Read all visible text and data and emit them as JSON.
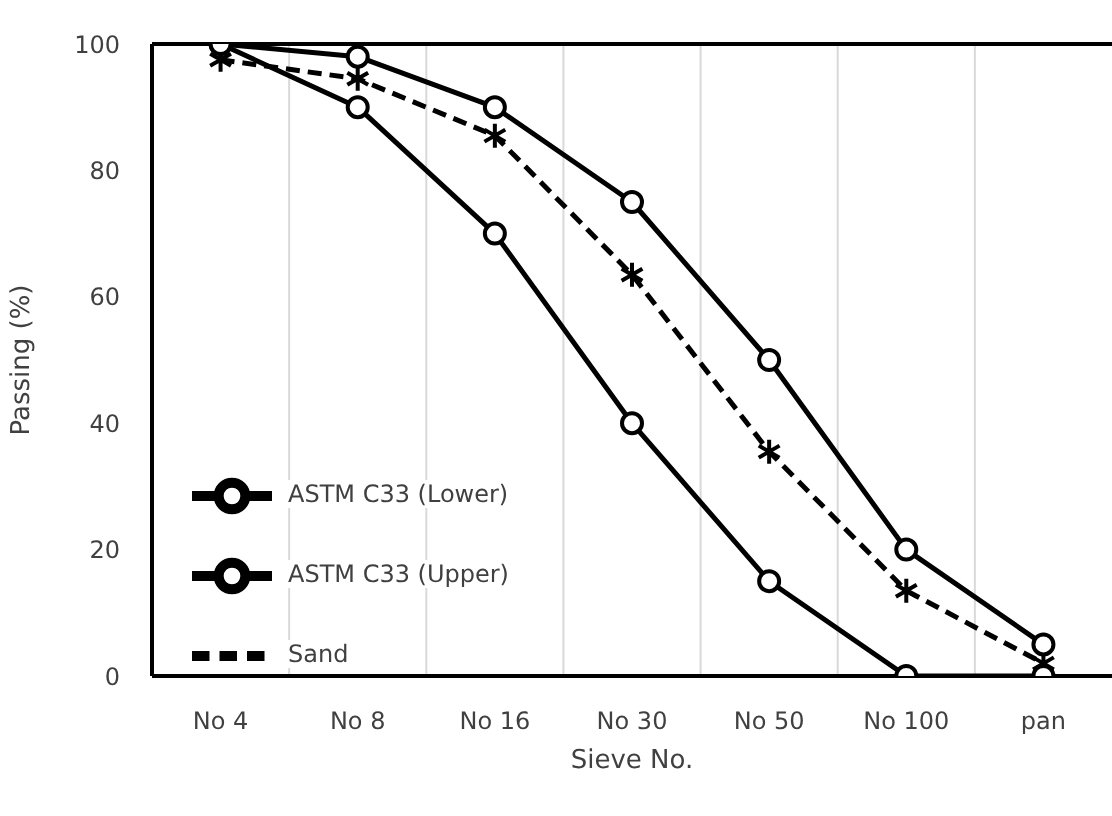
{
  "chart_data": {
    "type": "line",
    "xlabel": "Sieve No.",
    "ylabel": "Passing (%)",
    "categories": [
      "No 4",
      "No 8",
      "No 16",
      "No 30",
      "No 50",
      "No 100",
      "pan"
    ],
    "series": [
      {
        "name": "Sand",
        "color": "#000000",
        "line_style": "dashed",
        "marker": "cross",
        "values": [
          97.5,
          94.5,
          85.5,
          63.5,
          35.5,
          13.5,
          2
        ]
      },
      {
        "name": "ASTM C33 (Lower)",
        "color": "#000000",
        "line_style": "solid",
        "marker": "circle",
        "values": [
          100,
          90,
          70,
          40,
          15,
          0,
          0
        ]
      },
      {
        "name": "ASTM C33 (Upper)",
        "color": "#000000",
        "line_style": "solid",
        "marker": "circle",
        "values": [
          100,
          98,
          90,
          75,
          50,
          20,
          5
        ]
      }
    ],
    "ylim": [
      0,
      100
    ],
    "yticks": [
      0,
      20,
      40,
      60,
      80,
      100
    ],
    "grid": "x",
    "legend": "bottom left"
  }
}
